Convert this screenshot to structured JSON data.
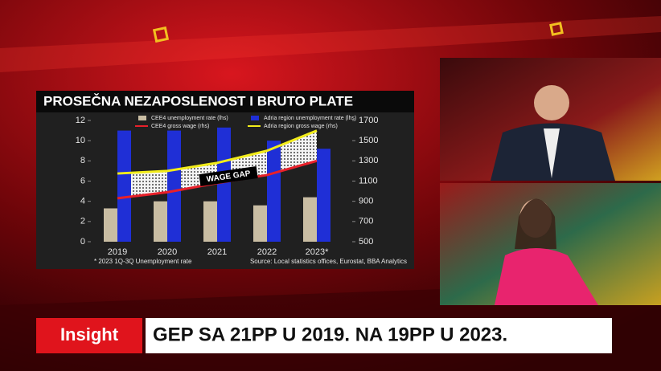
{
  "chart_data": {
    "type": "bar-line",
    "title": "PROSEČNA NEZAPOSLENOST I BRUTO PLATE",
    "categories": [
      "2019",
      "2020",
      "2021",
      "2022",
      "2023*"
    ],
    "series": [
      {
        "name": "CEE4 unemployment rate (lhs)",
        "type": "bar",
        "color": "#c9bda3",
        "values": [
          3.3,
          4.0,
          4.0,
          3.6,
          4.4
        ]
      },
      {
        "name": "Adria region unemployment rate (lhs)",
        "type": "bar",
        "color": "#1f2fd6",
        "values": [
          11.0,
          11.0,
          11.3,
          10.0,
          9.2
        ]
      },
      {
        "name": "CEE4 gross wage (rhs)",
        "type": "line",
        "axis": "y2",
        "color": "#e8202a",
        "values": [
          930,
          990,
          1080,
          1160,
          1300
        ]
      },
      {
        "name": "Adria region gross wage (rhs)",
        "type": "line",
        "axis": "y2",
        "color": "#f2ec1a",
        "values": [
          1175,
          1200,
          1280,
          1400,
          1600
        ]
      }
    ],
    "ylim": [
      0,
      12
    ],
    "yticks": [
      0,
      2,
      4,
      6,
      8,
      10,
      12
    ],
    "y2lim": [
      500,
      1700
    ],
    "y2ticks": [
      500,
      700,
      900,
      1100,
      1300,
      1500,
      1700
    ],
    "annotation": "WAGE GAP",
    "footnote": "* 2023 1Q-3Q Unemployment rate",
    "source": "Source: Local statistics offices, Eurostat, BBA Analytics"
  },
  "banner": {
    "tag": "Insight",
    "headline": "GEP SA 21PP U 2019. NA 19PP U 2023."
  }
}
